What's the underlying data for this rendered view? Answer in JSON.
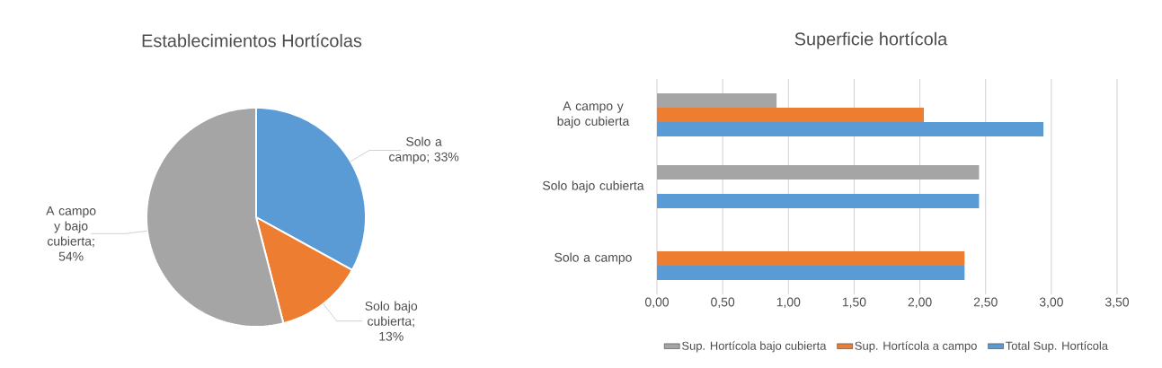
{
  "chart_data": [
    {
      "type": "pie",
      "title": "Establecimientos Hortícolas",
      "categories": [
        "Solo a campo",
        "Solo bajo cubierta",
        "A campo y bajo cubierta"
      ],
      "values": [
        33,
        13,
        54
      ],
      "colors": [
        "#5b9bd5",
        "#ed7d31",
        "#a5a5a5"
      ],
      "value_labels": [
        "; 33%",
        "; 13%",
        "; 54%"
      ]
    },
    {
      "type": "bar",
      "orientation": "horizontal",
      "title": "Superficie hortícola",
      "categories": [
        "A campo y bajo cubierta",
        "Solo bajo cubierta",
        "Solo a campo"
      ],
      "series": [
        {
          "name": "Sup. Hortícola bajo cubierta",
          "color": "#a5a5a5",
          "values": [
            0.91,
            2.45,
            null
          ]
        },
        {
          "name": "Sup. Hortícola a campo",
          "color": "#ed7d31",
          "values": [
            2.03,
            null,
            2.34
          ]
        },
        {
          "name": "Total Sup. Hortícola",
          "color": "#5b9bd5",
          "values": [
            2.94,
            2.45,
            2.34
          ]
        }
      ],
      "xlim": [
        0,
        3.5
      ],
      "xticks": [
        {
          "value": 0,
          "label": "0,00"
        },
        {
          "value": 0.5,
          "label": "0,50"
        },
        {
          "value": 1,
          "label": "1,00"
        },
        {
          "value": 1.5,
          "label": "1,50"
        },
        {
          "value": 2,
          "label": "2,00"
        },
        {
          "value": 2.5,
          "label": "2,50"
        },
        {
          "value": 3,
          "label": "3,00"
        },
        {
          "value": 3.5,
          "label": "3,50"
        }
      ],
      "grid": "x",
      "legend": "bottom"
    }
  ]
}
